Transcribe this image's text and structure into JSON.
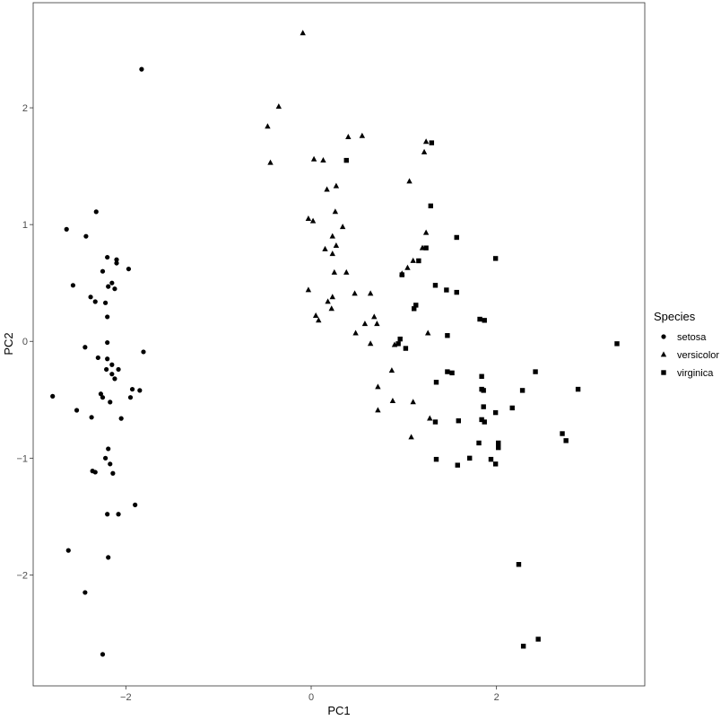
{
  "chart_data": {
    "type": "scatter",
    "title": "",
    "xlabel": "PC1",
    "ylabel": "PC2",
    "xlim": [
      -3.0,
      3.6
    ],
    "ylim": [
      -2.95,
      2.9
    ],
    "x_ticks": [
      -2,
      0,
      2
    ],
    "y_ticks": [
      -2,
      -1,
      0,
      1,
      2
    ],
    "grid": false,
    "legend": {
      "title": "Species",
      "position": "right"
    },
    "series": [
      {
        "name": "setosa",
        "marker": "circle",
        "points": [
          [
            -1.83,
            2.33
          ],
          [
            -2.64,
            0.96
          ],
          [
            -2.32,
            1.11
          ],
          [
            -2.43,
            0.9
          ],
          [
            -2.57,
            0.48
          ],
          [
            -2.38,
            0.38
          ],
          [
            -2.33,
            0.34
          ],
          [
            -2.22,
            0.33
          ],
          [
            -2.25,
            0.6
          ],
          [
            -2.2,
            0.72
          ],
          [
            -2.1,
            0.7
          ],
          [
            -2.1,
            0.67
          ],
          [
            -2.15,
            0.5
          ],
          [
            -2.19,
            0.47
          ],
          [
            -2.12,
            0.45
          ],
          [
            -1.97,
            0.62
          ],
          [
            -2.2,
            0.21
          ],
          [
            -2.2,
            -0.01
          ],
          [
            -2.44,
            -0.05
          ],
          [
            -2.3,
            -0.14
          ],
          [
            -2.2,
            -0.15
          ],
          [
            -2.15,
            -0.2
          ],
          [
            -2.21,
            -0.24
          ],
          [
            -2.08,
            -0.24
          ],
          [
            -2.15,
            -0.28
          ],
          [
            -2.12,
            -0.32
          ],
          [
            -2.27,
            -0.45
          ],
          [
            -2.25,
            -0.48
          ],
          [
            -2.17,
            -0.52
          ],
          [
            -2.05,
            -0.66
          ],
          [
            -1.93,
            -0.41
          ],
          [
            -1.95,
            -0.48
          ],
          [
            -1.85,
            -0.42
          ],
          [
            -1.81,
            -0.09
          ],
          [
            -2.79,
            -0.47
          ],
          [
            -2.53,
            -0.59
          ],
          [
            -2.37,
            -0.65
          ],
          [
            -2.19,
            -0.92
          ],
          [
            -2.22,
            -1.0
          ],
          [
            -2.17,
            -1.05
          ],
          [
            -2.36,
            -1.11
          ],
          [
            -2.33,
            -1.12
          ],
          [
            -2.14,
            -1.13
          ],
          [
            -2.2,
            -1.48
          ],
          [
            -2.08,
            -1.48
          ],
          [
            -1.9,
            -1.4
          ],
          [
            -2.19,
            -1.85
          ],
          [
            -2.62,
            -1.79
          ],
          [
            -2.44,
            -2.15
          ],
          [
            -2.25,
            -2.68
          ]
        ]
      },
      {
        "name": "versicolor",
        "marker": "triangle",
        "points": [
          [
            -0.09,
            2.64
          ],
          [
            -0.35,
            2.01
          ],
          [
            -0.47,
            1.84
          ],
          [
            -0.44,
            1.53
          ],
          [
            0.55,
            1.76
          ],
          [
            0.4,
            1.75
          ],
          [
            0.03,
            1.56
          ],
          [
            0.13,
            1.55
          ],
          [
            1.22,
            1.62
          ],
          [
            1.24,
            1.71
          ],
          [
            1.06,
            1.37
          ],
          [
            0.17,
            1.3
          ],
          [
            0.27,
            1.33
          ],
          [
            0.26,
            1.11
          ],
          [
            0.34,
            0.98
          ],
          [
            -0.03,
            1.05
          ],
          [
            0.02,
            1.03
          ],
          [
            0.23,
            0.9
          ],
          [
            0.27,
            0.82
          ],
          [
            0.15,
            0.79
          ],
          [
            0.23,
            0.75
          ],
          [
            1.24,
            0.93
          ],
          [
            1.2,
            0.8
          ],
          [
            1.1,
            0.69
          ],
          [
            1.04,
            0.63
          ],
          [
            0.98,
            0.58
          ],
          [
            0.25,
            0.59
          ],
          [
            0.38,
            0.59
          ],
          [
            -0.03,
            0.44
          ],
          [
            0.47,
            0.41
          ],
          [
            0.64,
            0.41
          ],
          [
            0.23,
            0.38
          ],
          [
            0.18,
            0.34
          ],
          [
            0.22,
            0.28
          ],
          [
            0.05,
            0.22
          ],
          [
            0.08,
            0.18
          ],
          [
            0.58,
            0.15
          ],
          [
            0.68,
            0.21
          ],
          [
            0.71,
            0.15
          ],
          [
            0.48,
            0.07
          ],
          [
            0.64,
            -0.02
          ],
          [
            0.9,
            -0.03
          ],
          [
            1.26,
            0.07
          ],
          [
            0.87,
            -0.25
          ],
          [
            0.72,
            -0.39
          ],
          [
            1.1,
            -0.52
          ],
          [
            0.88,
            -0.51
          ],
          [
            1.28,
            -0.66
          ],
          [
            0.72,
            -0.59
          ],
          [
            1.08,
            -0.82
          ]
        ]
      },
      {
        "name": "virginica",
        "marker": "square",
        "points": [
          [
            0.38,
            1.55
          ],
          [
            1.3,
            1.7
          ],
          [
            1.29,
            1.16
          ],
          [
            1.57,
            0.89
          ],
          [
            1.99,
            0.71
          ],
          [
            1.24,
            0.8
          ],
          [
            1.16,
            0.69
          ],
          [
            0.98,
            0.57
          ],
          [
            1.34,
            0.48
          ],
          [
            1.57,
            0.42
          ],
          [
            1.46,
            0.44
          ],
          [
            1.13,
            0.31
          ],
          [
            1.11,
            0.28
          ],
          [
            1.82,
            0.19
          ],
          [
            1.87,
            0.18
          ],
          [
            1.47,
            0.05
          ],
          [
            0.96,
            0.02
          ],
          [
            0.94,
            -0.02
          ],
          [
            1.02,
            -0.06
          ],
          [
            1.47,
            -0.26
          ],
          [
            1.52,
            -0.27
          ],
          [
            1.84,
            -0.3
          ],
          [
            1.35,
            -0.35
          ],
          [
            1.84,
            -0.41
          ],
          [
            1.86,
            -0.42
          ],
          [
            2.28,
            -0.42
          ],
          [
            2.42,
            -0.26
          ],
          [
            2.88,
            -0.41
          ],
          [
            2.17,
            -0.57
          ],
          [
            1.86,
            -0.56
          ],
          [
            1.99,
            -0.61
          ],
          [
            1.84,
            -0.67
          ],
          [
            1.87,
            -0.69
          ],
          [
            1.59,
            -0.68
          ],
          [
            1.34,
            -0.69
          ],
          [
            2.71,
            -0.79
          ],
          [
            2.75,
            -0.85
          ],
          [
            3.3,
            -0.02
          ],
          [
            1.81,
            -0.87
          ],
          [
            2.02,
            -0.87
          ],
          [
            2.02,
            -0.91
          ],
          [
            1.71,
            -1.0
          ],
          [
            1.35,
            -1.01
          ],
          [
            1.94,
            -1.01
          ],
          [
            1.99,
            -1.05
          ],
          [
            1.58,
            -1.06
          ],
          [
            2.24,
            -1.91
          ],
          [
            2.29,
            -2.61
          ],
          [
            2.45,
            -2.55
          ]
        ]
      }
    ]
  }
}
